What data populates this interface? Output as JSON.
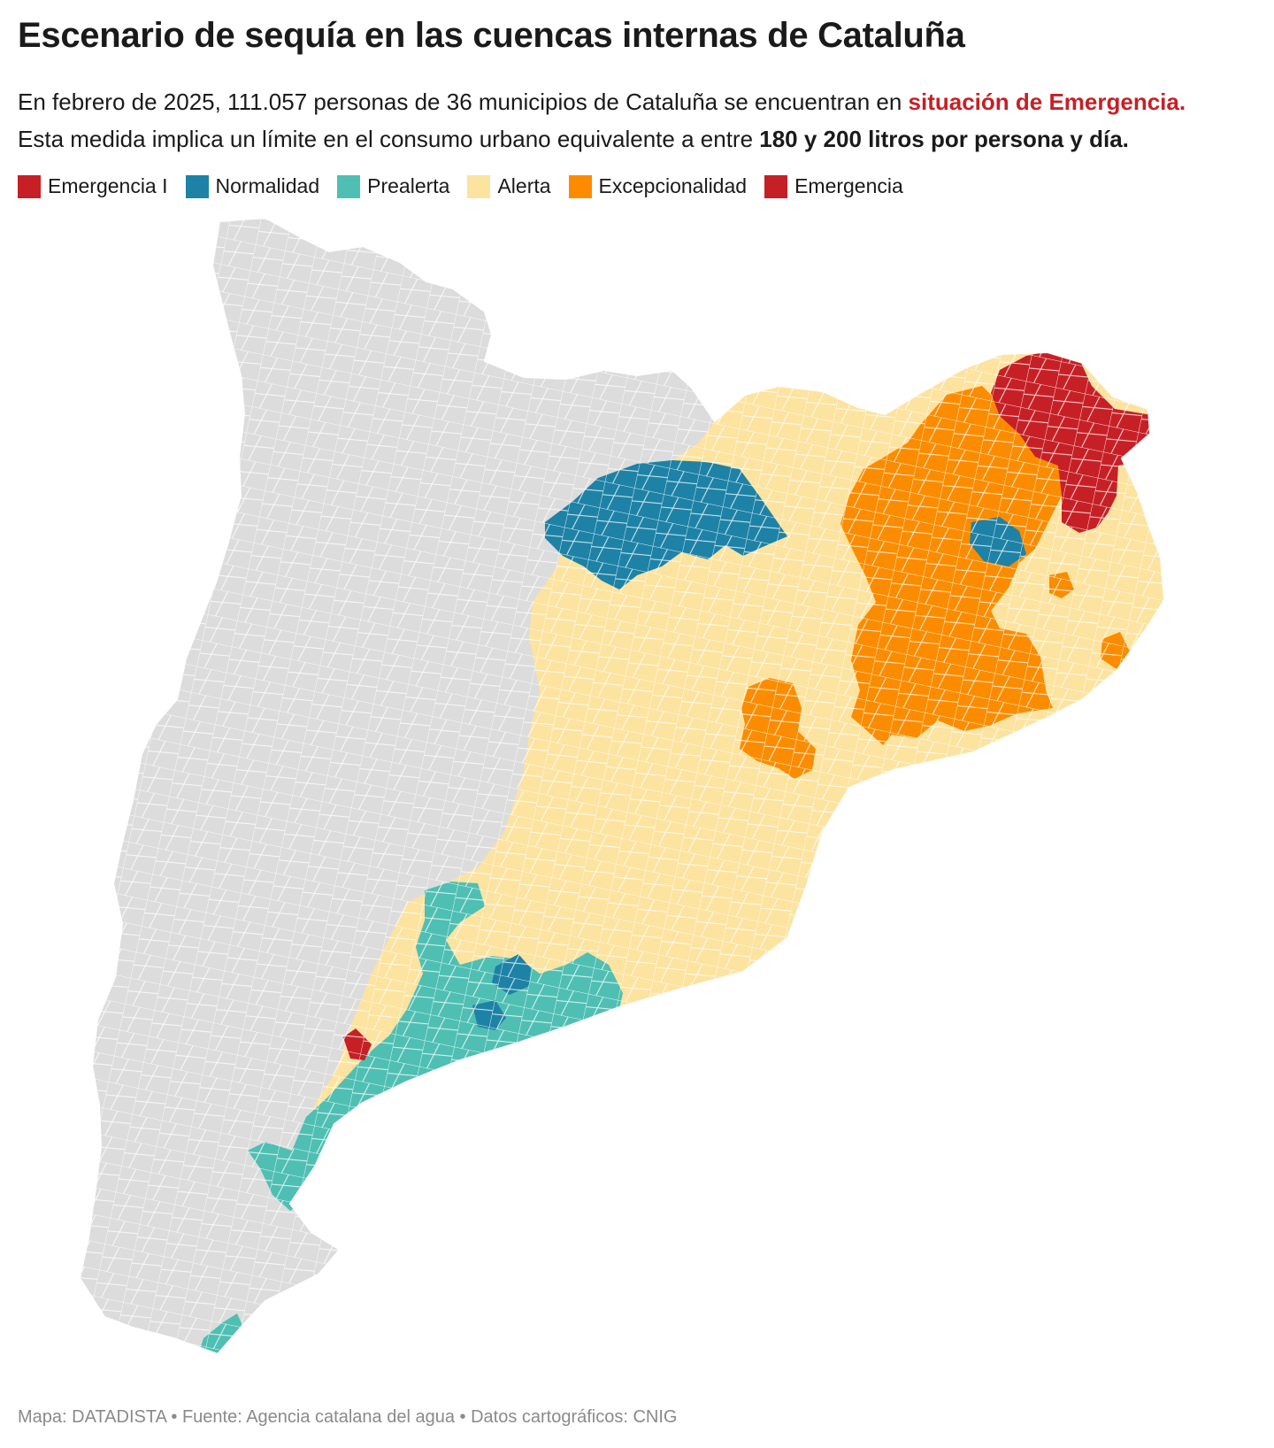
{
  "title": "Escenario de sequía en las cuencas internas de Cataluña",
  "subtitle": {
    "line1_before": "En febrero de 2025, 111.057 personas de 36 municipios de Cataluña se encuentran en ",
    "line1_highlight": "situación de Emergencia.",
    "line2_before": "Esta medida implica un límite en el consumo urbano equivalente a entre ",
    "line2_highlight": "180 y 200 litros por persona y día."
  },
  "legend": [
    {
      "label": "Emergencia I",
      "color": "#c62026"
    },
    {
      "label": "Normalidad",
      "color": "#1d82a6"
    },
    {
      "label": "Prealerta",
      "color": "#4fbfb3"
    },
    {
      "label": "Alerta",
      "color": "#fde3a0"
    },
    {
      "label": "Excepcionalidad",
      "color": "#fb8c00"
    },
    {
      "label": "Emergencia",
      "color": "#c62026"
    }
  ],
  "map": {
    "region": "Cataluña",
    "no_data_color": "#dcdcdc",
    "border_color": "#ffffff"
  },
  "footer": "Mapa: DATADISTA • Fuente: Agencia catalana del agua • Datos cartográficos: CNIG"
}
